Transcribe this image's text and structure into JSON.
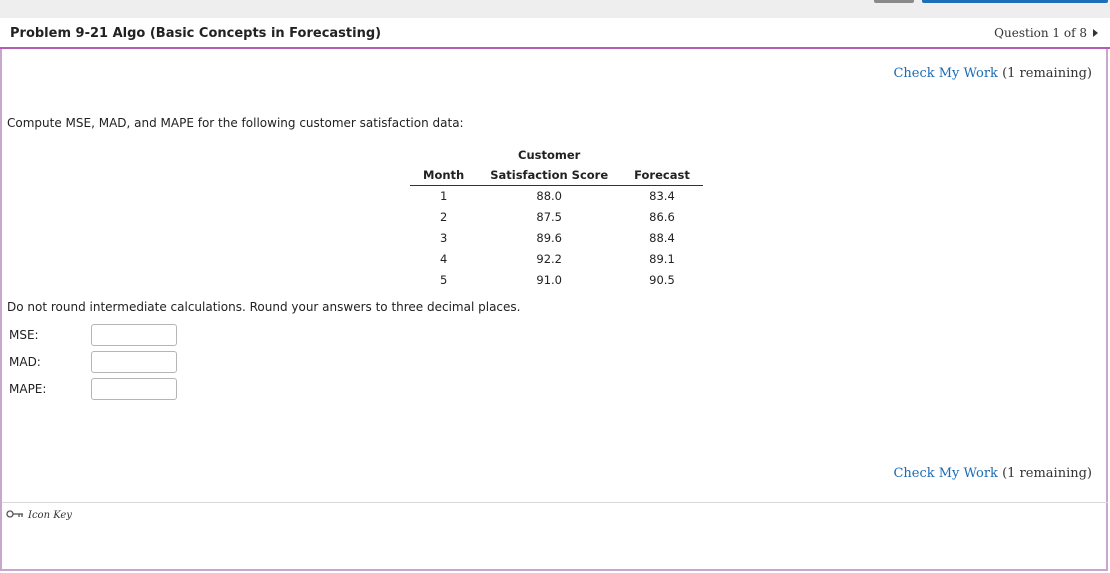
{
  "header": {
    "title": "Problem 9-21 Algo (Basic Concepts in Forecasting)",
    "question_nav": "Question 1 of 8"
  },
  "check_my_work": {
    "link_label": "Check My Work",
    "remaining": "(1 remaining)"
  },
  "prompt": "Compute MSE, MAD, and MAPE for the following customer satisfaction data:",
  "table": {
    "headers": {
      "month": "Month",
      "score_line1": "Customer",
      "score_line2": "Satisfaction Score",
      "forecast": "Forecast"
    },
    "rows": [
      {
        "month": "1",
        "score": "88.0",
        "forecast": "83.4"
      },
      {
        "month": "2",
        "score": "87.5",
        "forecast": "86.6"
      },
      {
        "month": "3",
        "score": "89.6",
        "forecast": "88.4"
      },
      {
        "month": "4",
        "score": "92.2",
        "forecast": "89.1"
      },
      {
        "month": "5",
        "score": "91.0",
        "forecast": "90.5"
      }
    ]
  },
  "instructions": "Do not round intermediate calculations. Round your answers to three decimal places.",
  "fields": [
    {
      "label": "MSE:",
      "value": ""
    },
    {
      "label": "MAD:",
      "value": ""
    },
    {
      "label": "MAPE:",
      "value": ""
    }
  ],
  "footer": {
    "icon_key_label": "Icon Key",
    "icon": "key-icon"
  },
  "colors": {
    "accent_border": "#b05db3",
    "link": "#1a6bb5",
    "topbar_button": "#1f6fb8"
  }
}
